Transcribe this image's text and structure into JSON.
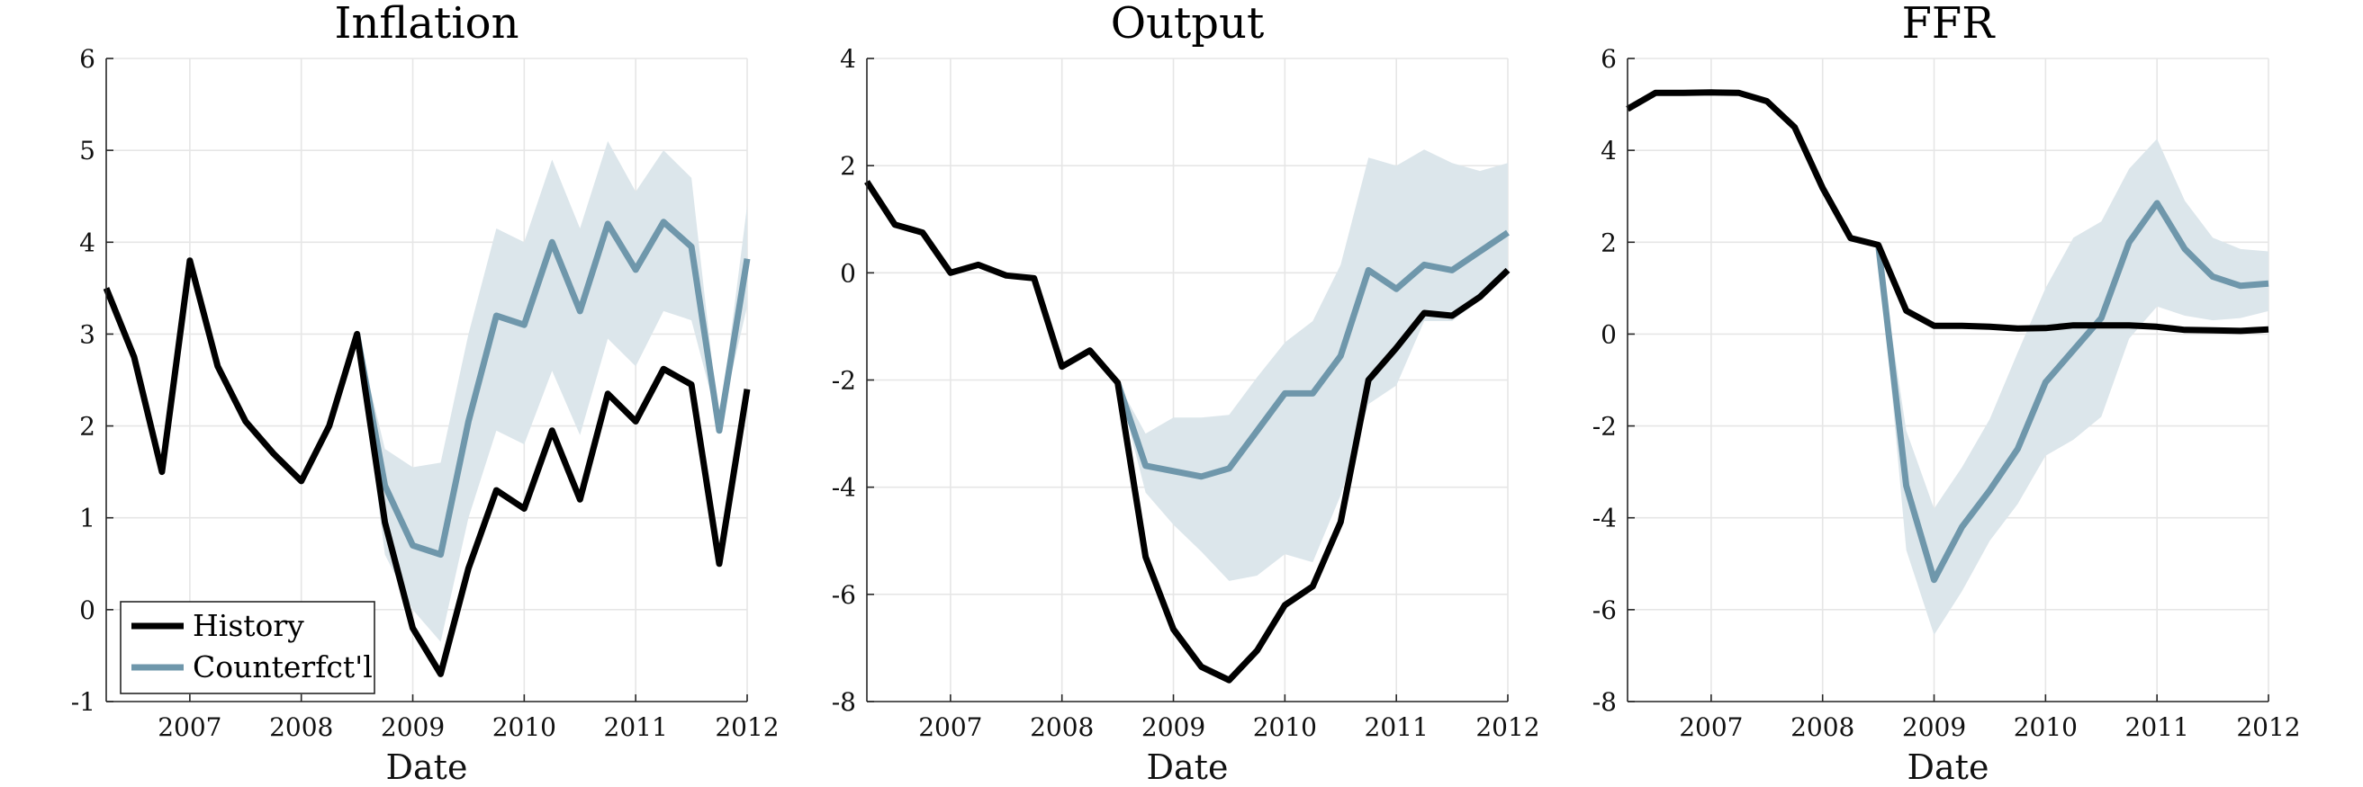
{
  "figure": {
    "colors": {
      "history": "#000000",
      "counterfactual": "#6f97ab",
      "band": "#dce6eb"
    },
    "legend": {
      "placement": "bottom-left",
      "panel": 0,
      "labels": [
        "History",
        "Counterfct'l"
      ]
    }
  },
  "chart_data": [
    {
      "type": "line",
      "title": "Inflation",
      "xlabel": "Date",
      "ylabel": "",
      "xlim": [
        2006.25,
        2012.0
      ],
      "ylim": [
        -1,
        6
      ],
      "yticks": [
        -1,
        0,
        1,
        2,
        3,
        4,
        5,
        6
      ],
      "xticks": [
        2007,
        2008,
        2009,
        2010,
        2011,
        2012
      ],
      "grid": true,
      "series": [
        {
          "name": "History",
          "x": [
            2006.25,
            2006.5,
            2006.75,
            2007.0,
            2007.25,
            2007.5,
            2007.75,
            2008.0,
            2008.25,
            2008.5,
            2008.75,
            2009.0,
            2009.25,
            2009.5,
            2009.75,
            2010.0,
            2010.25,
            2010.5,
            2010.75,
            2011.0,
            2011.25,
            2011.5,
            2011.75,
            2012.0
          ],
          "y": [
            3.5,
            2.75,
            1.5,
            3.8,
            2.65,
            2.05,
            1.7,
            1.4,
            2.0,
            3.0,
            0.95,
            -0.2,
            -0.7,
            0.45,
            1.3,
            1.1,
            1.95,
            1.2,
            2.35,
            2.05,
            2.62,
            2.45,
            0.5,
            2.4
          ]
        },
        {
          "name": "Counterfct'l",
          "x": [
            2008.5,
            2008.75,
            2009.0,
            2009.25,
            2009.5,
            2009.75,
            2010.0,
            2010.25,
            2010.5,
            2010.75,
            2011.0,
            2011.25,
            2011.5,
            2011.75,
            2012.0
          ],
          "y": [
            3.0,
            1.35,
            0.7,
            0.6,
            2.05,
            3.2,
            3.1,
            4.0,
            3.25,
            4.2,
            3.7,
            4.22,
            3.95,
            1.95,
            3.82
          ]
        }
      ],
      "band": {
        "x": [
          2008.5,
          2008.75,
          2009.0,
          2009.25,
          2009.5,
          2009.75,
          2010.0,
          2010.25,
          2010.5,
          2010.75,
          2011.0,
          2011.25,
          2011.5,
          2011.75,
          2012.0
        ],
        "lower": [
          3.0,
          0.6,
          0.0,
          -0.35,
          1.0,
          1.95,
          1.8,
          2.6,
          1.9,
          2.95,
          2.65,
          3.25,
          3.15,
          2.0,
          3.3
        ],
        "upper": [
          3.0,
          1.75,
          1.55,
          1.6,
          3.0,
          4.15,
          4.0,
          4.9,
          4.15,
          5.1,
          4.55,
          5.0,
          4.7,
          2.0,
          4.4
        ]
      }
    },
    {
      "type": "line",
      "title": "Output",
      "xlabel": "Date",
      "ylabel": "",
      "xlim": [
        2006.25,
        2012.0
      ],
      "ylim": [
        -8,
        4
      ],
      "yticks": [
        -8,
        -6,
        -4,
        -2,
        0,
        2,
        4
      ],
      "xticks": [
        2007,
        2008,
        2009,
        2010,
        2011,
        2012
      ],
      "grid": true,
      "series": [
        {
          "name": "History",
          "x": [
            2006.25,
            2006.5,
            2006.75,
            2007.0,
            2007.25,
            2007.5,
            2007.75,
            2008.0,
            2008.25,
            2008.5,
            2008.75,
            2009.0,
            2009.25,
            2009.5,
            2009.75,
            2010.0,
            2010.25,
            2010.5,
            2010.75,
            2011.0,
            2011.25,
            2011.5,
            2011.75,
            2012.0
          ],
          "y": [
            1.7,
            0.9,
            0.75,
            0.0,
            0.15,
            -0.05,
            -0.1,
            -1.75,
            -1.45,
            -2.05,
            -5.3,
            -6.65,
            -7.35,
            -7.6,
            -7.05,
            -6.2,
            -5.85,
            -4.65,
            -2.0,
            -1.4,
            -0.75,
            -0.8,
            -0.45,
            0.05
          ]
        },
        {
          "name": "Counterfct'l",
          "x": [
            2008.5,
            2008.75,
            2009.0,
            2009.25,
            2009.5,
            2009.75,
            2010.0,
            2010.25,
            2010.5,
            2010.75,
            2011.0,
            2011.25,
            2011.5,
            2011.75,
            2012.0
          ],
          "y": [
            -2.05,
            -3.6,
            -3.7,
            -3.8,
            -3.65,
            -2.95,
            -2.25,
            -2.25,
            -1.55,
            0.05,
            -0.3,
            0.15,
            0.05,
            0.4,
            0.75
          ]
        }
      ],
      "band": {
        "x": [
          2008.5,
          2008.75,
          2009.0,
          2009.25,
          2009.5,
          2009.75,
          2010.0,
          2010.25,
          2010.5,
          2010.75,
          2011.0,
          2011.25,
          2011.5,
          2011.75,
          2012.0
        ],
        "lower": [
          -2.05,
          -4.1,
          -4.7,
          -5.2,
          -5.75,
          -5.65,
          -5.25,
          -5.4,
          -4.15,
          -2.45,
          -2.1,
          -0.9,
          -0.9,
          -0.5,
          0.05
        ],
        "upper": [
          -2.05,
          -3.0,
          -2.7,
          -2.7,
          -2.65,
          -1.95,
          -1.3,
          -0.9,
          0.15,
          2.15,
          2.0,
          2.3,
          2.05,
          1.9,
          2.05
        ]
      }
    },
    {
      "type": "line",
      "title": "FFR",
      "xlabel": "Date",
      "ylabel": "",
      "xlim": [
        2006.25,
        2012.0
      ],
      "ylim": [
        -8,
        6
      ],
      "yticks": [
        -8,
        -6,
        -4,
        -2,
        0,
        2,
        4,
        6
      ],
      "xticks": [
        2007,
        2008,
        2009,
        2010,
        2011,
        2012
      ],
      "grid": true,
      "series": [
        {
          "name": "History",
          "x": [
            2006.25,
            2006.5,
            2006.75,
            2007.0,
            2007.25,
            2007.5,
            2007.75,
            2008.0,
            2008.25,
            2008.5,
            2008.75,
            2009.0,
            2009.25,
            2009.5,
            2009.75,
            2010.0,
            2010.25,
            2010.5,
            2010.75,
            2011.0,
            2011.25,
            2011.5,
            2011.75,
            2012.0
          ],
          "y": [
            4.9,
            5.25,
            5.25,
            5.26,
            5.25,
            5.07,
            4.5,
            3.18,
            2.09,
            1.94,
            0.51,
            0.18,
            0.18,
            0.16,
            0.12,
            0.13,
            0.19,
            0.19,
            0.19,
            0.16,
            0.09,
            0.08,
            0.07,
            0.1
          ]
        },
        {
          "name": "Counterfct'l",
          "x": [
            2008.5,
            2008.75,
            2009.0,
            2009.25,
            2009.5,
            2009.75,
            2010.0,
            2010.25,
            2010.5,
            2010.75,
            2011.0,
            2011.25,
            2011.5,
            2011.75,
            2012.0
          ],
          "y": [
            1.94,
            -3.3,
            -5.35,
            -4.2,
            -3.4,
            -2.5,
            -1.05,
            -0.35,
            0.35,
            2.0,
            2.85,
            1.85,
            1.25,
            1.05,
            1.1
          ]
        }
      ],
      "band": {
        "x": [
          2008.5,
          2008.75,
          2009.0,
          2009.25,
          2009.5,
          2009.75,
          2010.0,
          2010.25,
          2010.5,
          2010.75,
          2011.0,
          2011.25,
          2011.5,
          2011.75,
          2012.0
        ],
        "lower": [
          1.94,
          -4.7,
          -6.55,
          -5.6,
          -4.5,
          -3.7,
          -2.65,
          -2.3,
          -1.8,
          -0.1,
          0.6,
          0.4,
          0.3,
          0.35,
          0.5
        ],
        "upper": [
          1.94,
          -2.1,
          -3.8,
          -2.9,
          -1.85,
          -0.4,
          1.0,
          2.1,
          2.45,
          3.6,
          4.25,
          2.9,
          2.1,
          1.85,
          1.8
        ]
      }
    }
  ]
}
